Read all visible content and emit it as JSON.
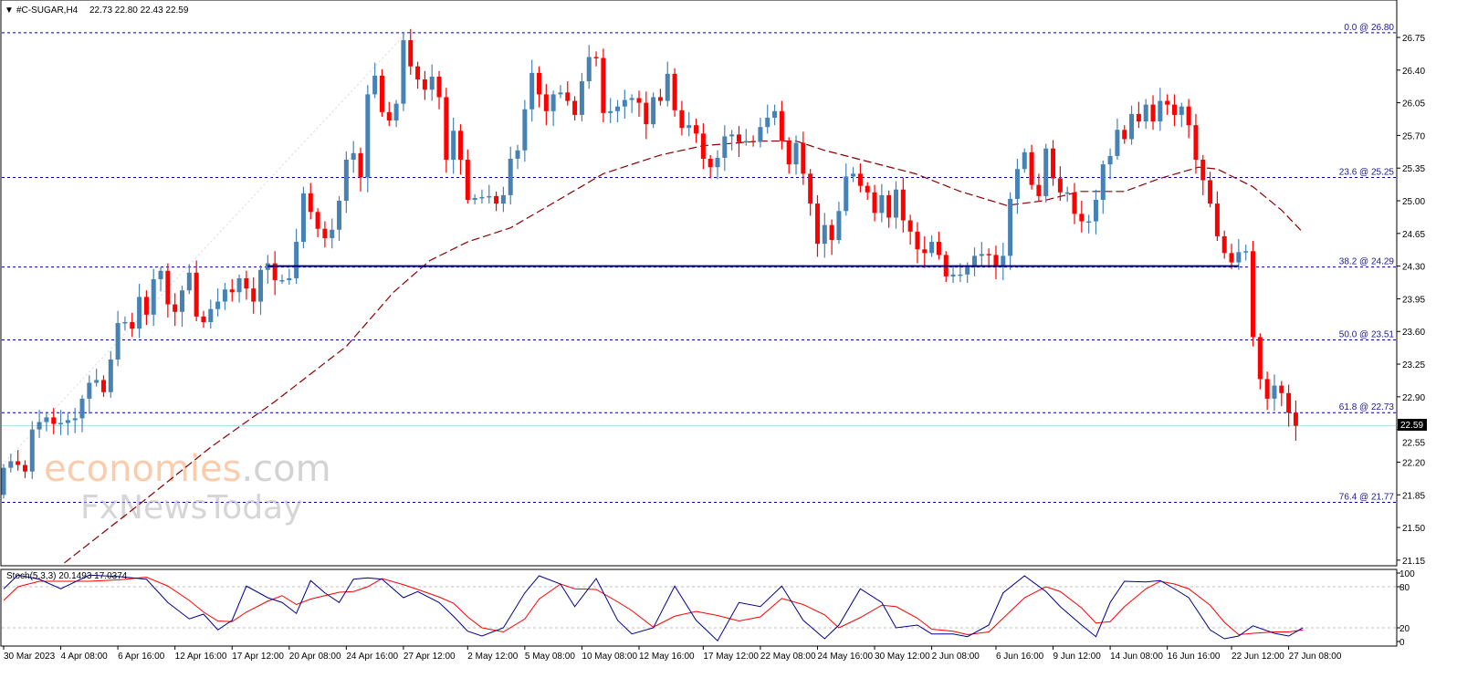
{
  "header": {
    "symbol": "#C-SUGAR,H4",
    "ohlc": "22.73 22.80 22.43 22.59",
    "arrow": "▼"
  },
  "colors": {
    "bull": "#4682b4",
    "bear": "#ff0000",
    "ma": "#8b0000",
    "fib": "#00008b",
    "support": "#00008b",
    "bid": "#a8dde6",
    "stoch_main": "#00008b",
    "stoch_signal": "#ff0000"
  },
  "watermark": {
    "line1a": "economies",
    "line1b": ".com",
    "line2": "FxNewsToday"
  },
  "chart_data": {
    "type": "candlestick",
    "title": "#C-SUGAR,H4",
    "ylim": [
      21.15,
      26.75
    ],
    "first_open": 21.85,
    "closes": [
      22.14,
      22.21,
      22.17,
      22.1,
      22.55,
      22.63,
      22.68,
      22.61,
      22.62,
      22.65,
      22.67,
      22.88,
      23.05,
      23.08,
      22.95,
      23.3,
      23.69,
      23.7,
      23.63,
      23.97,
      23.78,
      24.16,
      24.25,
      23.89,
      23.81,
      24.04,
      24.23,
      23.76,
      23.7,
      23.84,
      23.92,
      24.05,
      24.02,
      24.17,
      24.06,
      23.92,
      24.26,
      24.33,
      24.15,
      24.15,
      24.17,
      24.56,
      25.08,
      24.88,
      24.7,
      24.6,
      24.69,
      25.0,
      25.44,
      25.51,
      25.25,
      26.14,
      26.34,
      25.95,
      25.86,
      26.04,
      26.72,
      26.44,
      26.3,
      26.19,
      26.33,
      26.11,
      25.44,
      25.75,
      25.44,
      25.01,
      25.03,
      25.04,
      25.05,
      24.97,
      25.06,
      25.45,
      25.54,
      25.98,
      26.37,
      26.14,
      25.96,
      26.14,
      26.16,
      26.07,
      25.92,
      26.28,
      26.54,
      26.53,
      25.94,
      25.96,
      26.01,
      26.08,
      26.1,
      26.05,
      25.82,
      26.11,
      26.07,
      26.36,
      25.97,
      25.78,
      25.81,
      25.72,
      25.45,
      25.36,
      25.46,
      25.69,
      25.71,
      25.63,
      25.64,
      25.63,
      25.79,
      25.89,
      25.96,
      25.64,
      25.39,
      25.62,
      25.29,
      24.97,
      24.54,
      24.74,
      24.58,
      24.89,
      25.26,
      25.29,
      25.16,
      25.09,
      24.87,
      25.06,
      24.82,
      25.12,
      24.79,
      24.67,
      24.48,
      24.44,
      24.56,
      24.42,
      24.19,
      24.21,
      24.21,
      24.29,
      24.41,
      24.43,
      24.42,
      24.29,
      24.41,
      25.02,
      25.34,
      25.52,
      25.17,
      25.05,
      25.56,
      25.24,
      25.09,
      25.09,
      24.86,
      24.78,
      24.78,
      25.01,
      25.39,
      25.48,
      25.76,
      25.66,
      25.93,
      25.85,
      26.03,
      25.85,
      26.07,
      26.03,
      25.92,
      26.01,
      25.81,
      25.44,
      25.22,
      24.97,
      24.62,
      24.44,
      24.34,
      24.45,
      24.46,
      23.54,
      23.09,
      22.88,
      23.02,
      22.94,
      22.73,
      22.59
    ],
    "moving_average": [
      [
        8.5,
        21.12
      ],
      [
        18.7,
        21.73
      ],
      [
        29,
        22.36
      ],
      [
        38,
        22.85
      ],
      [
        48,
        23.44
      ],
      [
        54.6,
        24.02
      ],
      [
        59.7,
        24.36
      ],
      [
        65,
        24.56
      ],
      [
        71,
        24.71
      ],
      [
        76.4,
        24.95
      ],
      [
        84,
        25.29
      ],
      [
        92,
        25.49
      ],
      [
        98,
        25.59
      ],
      [
        106,
        25.64
      ],
      [
        111,
        25.64
      ],
      [
        115,
        25.54
      ],
      [
        122.6,
        25.39
      ],
      [
        127.7,
        25.29
      ],
      [
        134,
        25.1
      ],
      [
        140.5,
        24.95
      ],
      [
        145.6,
        25.0
      ],
      [
        150.8,
        25.1
      ],
      [
        157,
        25.1
      ],
      [
        162,
        25.24
      ],
      [
        167.4,
        25.36
      ],
      [
        170,
        25.34
      ],
      [
        175,
        25.15
      ],
      [
        179,
        24.9
      ],
      [
        182,
        24.66
      ]
    ],
    "support_line": {
      "price": 24.3,
      "from_index": 37,
      "to_index": 173
    },
    "bid": "22.59",
    "fib_levels": [
      {
        "price": 26.8,
        "label": "0.0 @ 26.80"
      },
      {
        "price": 25.25,
        "label": "23.6 @ 25.25"
      },
      {
        "price": 24.29,
        "label": "38.2 @ 24.29"
      },
      {
        "price": 23.51,
        "label": "50.0 @ 23.51"
      },
      {
        "price": 22.73,
        "label": "61.8 @ 22.73"
      },
      {
        "price": 21.77,
        "label": "76.4 @ 21.77"
      }
    ],
    "price_ticks": [
      "26.75",
      "26.40",
      "26.05",
      "25.70",
      "25.35",
      "25.00",
      "24.65",
      "24.30",
      "23.95",
      "23.60",
      "23.25",
      "22.90",
      "22.55",
      "22.20",
      "21.85",
      "21.50",
      "21.15"
    ],
    "time_ticks": [
      {
        "index": 0,
        "label": "30 Mar 2023"
      },
      {
        "index": 8,
        "label": "4 Apr 08:00"
      },
      {
        "index": 16,
        "label": "6 Apr 16:00"
      },
      {
        "index": 24,
        "label": "12 Apr 16:00"
      },
      {
        "index": 32,
        "label": "17 Apr 12:00"
      },
      {
        "index": 40,
        "label": "20 Apr 08:00"
      },
      {
        "index": 48,
        "label": "24 Apr 16:00"
      },
      {
        "index": 56,
        "label": "27 Apr 12:00"
      },
      {
        "index": 65,
        "label": "2 May 12:00"
      },
      {
        "index": 73,
        "label": "5 May 08:00"
      },
      {
        "index": 81,
        "label": "10 May 08:00"
      },
      {
        "index": 89,
        "label": "12 May 16:00"
      },
      {
        "index": 98,
        "label": "17 May 12:00"
      },
      {
        "index": 106,
        "label": "22 May 08:00"
      },
      {
        "index": 114,
        "label": "24 May 16:00"
      },
      {
        "index": 122,
        "label": "30 May 12:00"
      },
      {
        "index": 130,
        "label": "2 Jun 08:00"
      },
      {
        "index": 139,
        "label": "6 Jun 16:00"
      },
      {
        "index": 147,
        "label": "9 Jun 12:00"
      },
      {
        "index": 155,
        "label": "14 Jun 08:00"
      },
      {
        "index": 163,
        "label": "16 Jun 16:00"
      },
      {
        "index": 172,
        "label": "22 Jun 12:00"
      },
      {
        "index": 180,
        "label": "27 Jun 08:00"
      }
    ],
    "stochastic": {
      "label": "Stoch(5,3,3) 20.1493 17.0374",
      "levels": [
        "100",
        "80",
        "20",
        "0"
      ],
      "index": [
        0,
        2,
        5,
        8,
        12,
        16,
        20,
        23,
        26,
        28,
        30,
        32,
        34,
        37,
        39,
        41,
        43,
        45,
        47,
        49,
        51,
        53,
        56,
        58,
        61,
        63,
        65,
        67,
        70,
        73,
        75,
        78,
        80,
        83,
        86,
        88,
        91,
        94,
        97,
        100,
        103,
        106,
        109,
        112,
        115,
        117,
        120,
        123,
        125,
        128,
        130,
        133,
        135,
        138,
        140,
        143,
        146,
        148,
        151,
        153,
        155,
        157,
        160,
        162,
        164,
        166,
        169,
        171,
        173,
        175,
        178,
        180,
        182
      ],
      "main": [
        77,
        97,
        91,
        77,
        97,
        95,
        91,
        57,
        33,
        40,
        17,
        31,
        81,
        64,
        57,
        41,
        89,
        71,
        57,
        91,
        93,
        91,
        64,
        73,
        57,
        37,
        15,
        8,
        20,
        71,
        96,
        84,
        51,
        92,
        31,
        11,
        20,
        81,
        31,
        1,
        57,
        51,
        81,
        31,
        4,
        24,
        77,
        57,
        20,
        24,
        11,
        11,
        7,
        24,
        71,
        96,
        73,
        51,
        24,
        7,
        57,
        88,
        87,
        89,
        77,
        64,
        17,
        4,
        8,
        23,
        12,
        8,
        20.15
      ],
      "signal": [
        60,
        80,
        88,
        88,
        88,
        90,
        94,
        81,
        60,
        43,
        30,
        29,
        43,
        59,
        67,
        54,
        62,
        67,
        72,
        73,
        80,
        92,
        83,
        76,
        65,
        56,
        36,
        20,
        14,
        33,
        62,
        84,
        77,
        76,
        58,
        45,
        21,
        37,
        44,
        38,
        30,
        36,
        63,
        54,
        39,
        20,
        35,
        53,
        51,
        34,
        18,
        15,
        10,
        14,
        34,
        64,
        80,
        73,
        49,
        27,
        29,
        51,
        77,
        88,
        84,
        77,
        53,
        28,
        10,
        12,
        14,
        14,
        17.04
      ]
    }
  }
}
